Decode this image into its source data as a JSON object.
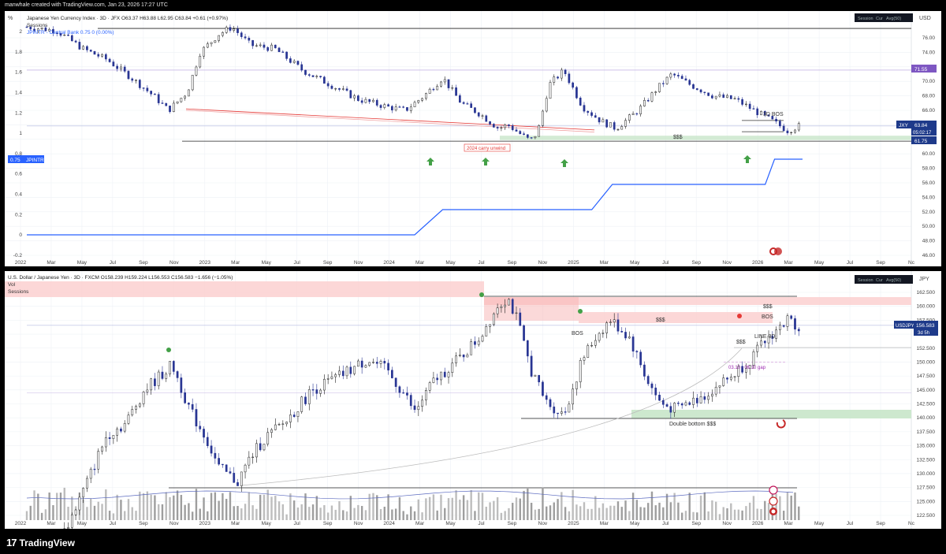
{
  "header": {
    "caption": "manwhale created with TradingView.com, Jan 23, 2026 17:27 UTC"
  },
  "footer": {
    "brand": "TradingView",
    "logo_glyph": "17"
  },
  "top_panel": {
    "corner_label": "%",
    "axis_unit": "USD",
    "legend_title": "Japanese Yen Currency Index · 3D · JFX  O63.37  H63.88  L62.95  C63.84  +0.61 (+0.97%)",
    "legend_sessions": "Sessions",
    "legend_indicator": "JPINTR - Central Bank  0.75  0 (0.00%)",
    "toolbar": [
      "Session",
      "Cur",
      "Avg(50)"
    ],
    "annotations": {
      "bos": "3D BOS",
      "liquidity": "$$$",
      "carry": "2024 carry unwind"
    },
    "badges": [
      {
        "text": "71.55",
        "color": "#7e57c2"
      },
      {
        "text": "JXY",
        "color": "#1e3a8a"
      },
      {
        "text": "63.84",
        "color": "#1e3a8a"
      },
      {
        "text": "05:02:17",
        "color": "#1e3a8a"
      },
      {
        "text": "61.75",
        "color": "#1e3a8a"
      }
    ],
    "jpintr_badge": {
      "value": "0.75",
      "name": "JPINTR"
    }
  },
  "bottom_panel": {
    "axis_unit": "JPY",
    "legend_title": "U.S. Dollar / Japanese Yen · 3D · FXCM  O158.239  H159.224  L156.553  C156.583  −1.656 (−1.05%)",
    "legend_vol": "Vol",
    "legend_sessions": "Sessions",
    "toolbar": [
      "Session",
      "Cur",
      "Avg(50)"
    ],
    "annotations": {
      "liquidity_top": "$$$",
      "liquidity_mid": "$$$",
      "liquidity_low": "$$$",
      "bos_left": "BOS",
      "bos_right": "BOS",
      "line_3d": "LINE 3D",
      "gap": "03.10 - 06.10 gap",
      "double_bottom": "Double bottom $$$"
    },
    "badges": [
      {
        "text": "USDJPY",
        "color": "#1e3a8a"
      },
      {
        "text": "156.583",
        "color": "#1e3a8a"
      },
      {
        "text": "3d 5h",
        "color": "#1e3a8a"
      }
    ]
  },
  "chart_data": [
    {
      "type": "candlestick",
      "title": "Japanese Yen Currency Index · 3D · JFX",
      "ylabel": "USD",
      "x_ticks": [
        "2022",
        "Mar",
        "May",
        "Jul",
        "Sep",
        "Nov",
        "2023",
        "Mar",
        "May",
        "Jul",
        "Sep",
        "Nov",
        "2024",
        "Mar",
        "May",
        "Jul",
        "Sep",
        "Nov",
        "2025",
        "Mar",
        "May",
        "Jul",
        "Sep",
        "Nov",
        "2026",
        "Mar",
        "May",
        "Jul",
        "Sep",
        "Nc"
      ],
      "right_ticks": [
        "76.00",
        "74.00",
        "72.00",
        "70.00",
        "68.00",
        "66.00",
        "64.00",
        "62.00",
        "60.00",
        "58.00",
        "56.00",
        "54.00",
        "52.00",
        "50.00",
        "48.00",
        "46.00"
      ],
      "ylim": [
        45.5,
        77.5
      ],
      "jxy_path": {
        "x": [
          2021.92,
          2022.08,
          2022.22,
          2022.35,
          2022.48,
          2022.6,
          2022.68,
          2022.78,
          2022.85,
          2022.95,
          2023.02,
          2023.12,
          2023.25,
          2023.4,
          2023.55,
          2023.7,
          2023.85,
          2023.95,
          2024.05,
          2024.15,
          2024.25,
          2024.35,
          2024.45,
          2024.5,
          2024.58,
          2024.62,
          2024.66,
          2024.72,
          2024.8,
          2024.9,
          2025.0,
          2025.08,
          2025.2,
          2025.3,
          2025.38,
          2025.48,
          2025.6,
          2025.72,
          2025.82,
          2025.92,
          2026.0,
          2026.06
        ],
        "y": [
          77.5,
          77.0,
          74.5,
          73.0,
          70.5,
          68.0,
          66.0,
          68.5,
          74.0,
          76.5,
          77.5,
          75.0,
          74.5,
          71.5,
          69.5,
          67.5,
          66.5,
          66.0,
          68.0,
          70.5,
          67.0,
          65.5,
          63.5,
          64.0,
          62.5,
          61.8,
          63.0,
          69.5,
          71.5,
          66.5,
          64.5,
          63.5,
          66.0,
          69.0,
          71.0,
          69.5,
          68.0,
          67.5,
          66.0,
          64.5,
          63.2,
          63.84
        ]
      },
      "levels": {
        "resistance": 71.55,
        "current": 63.84,
        "support": 61.75
      },
      "jpintr": {
        "x": [
          2021.92,
          2024.0,
          2024.15,
          2024.5,
          2024.95,
          2025.06,
          2025.88,
          2025.93,
          2026.08
        ],
        "y": [
          0.0,
          0.0,
          0.25,
          0.25,
          0.25,
          0.5,
          0.5,
          0.75,
          0.75
        ]
      },
      "left_ticks": [
        "2",
        "1.8",
        "1.6",
        "1.4",
        "1.2",
        "1",
        "0.8",
        "0.6",
        "0.4",
        "0.2",
        "0",
        "-0.2"
      ]
    },
    {
      "type": "candlestick",
      "title": "U.S. Dollar / Japanese Yen · 3D · FXCM",
      "ylabel": "JPY",
      "x_ticks": [
        "2022",
        "Mar",
        "May",
        "Jul",
        "Sep",
        "Nov",
        "2023",
        "Mar",
        "May",
        "Jul",
        "Sep",
        "Nov",
        "2024",
        "Mar",
        "May",
        "Jul",
        "Sep",
        "Nov",
        "2025",
        "Mar",
        "May",
        "Jul",
        "Sep",
        "Nov",
        "2026",
        "Mar",
        "May",
        "Jul",
        "Sep",
        "Nc"
      ],
      "right_ticks": [
        "162.500",
        "160.000",
        "157.500",
        "155.000",
        "152.500",
        "150.000",
        "147.500",
        "145.000",
        "142.500",
        "140.000",
        "137.500",
        "135.000",
        "132.500",
        "130.000",
        "127.500",
        "125.000",
        "122.500"
      ],
      "ylim": [
        121.8,
        163.6
      ],
      "usdjpy_path": {
        "x": [
          2021.92,
          2022.05,
          2022.15,
          2022.25,
          2022.35,
          2022.45,
          2022.55,
          2022.7,
          2022.8,
          2022.88,
          2022.95,
          2023.05,
          2023.12,
          2023.2,
          2023.3,
          2023.45,
          2023.6,
          2023.75,
          2023.85,
          2023.95,
          2024.0,
          2024.1,
          2024.25,
          2024.35,
          2024.45,
          2024.5,
          2024.55,
          2024.62,
          2024.7,
          2024.8,
          2024.9,
          2024.98,
          2025.05,
          2025.15,
          2025.25,
          2025.32,
          2025.4,
          2025.55,
          2025.7,
          2025.8,
          2025.9,
          2026.0,
          2026.06
        ],
        "y": [
          115.0,
          115.5,
          121.5,
          129.0,
          137.0,
          139.0,
          145.0,
          149.5,
          141.0,
          136.5,
          131.0,
          128.5,
          133.0,
          136.5,
          139.0,
          145.0,
          147.5,
          150.5,
          148.5,
          144.0,
          141.0,
          146.5,
          151.0,
          154.5,
          160.5,
          161.5,
          157.5,
          149.0,
          143.0,
          140.5,
          150.5,
          155.0,
          157.5,
          154.5,
          146.5,
          142.5,
          141.5,
          144.0,
          147.5,
          150.5,
          154.5,
          157.5,
          156.583
        ]
      },
      "levels": {
        "current": 156.583,
        "ath_liquidity": 161.5,
        "double_bottom": 139.6
      }
    }
  ]
}
